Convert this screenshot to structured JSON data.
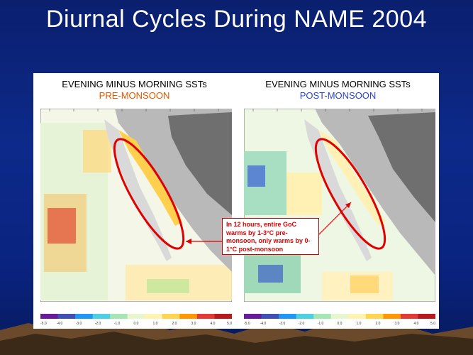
{
  "slide": {
    "title": "Diurnal Cycles During NAME 2004"
  },
  "panels": [
    {
      "title": "EVENING MINUS MORNING SSTs",
      "subtitle": "PRE-MONSOON",
      "subtitle_color": "#e05a00"
    },
    {
      "title": "EVENING MINUS MORNING SSTs",
      "subtitle": "POST-MONSOON",
      "subtitle_color": "#2a46c8"
    }
  ],
  "callout": {
    "text": "In 12 hours, entire GoC warms by 1-3°C pre-monsoon, only warms by 0-1°C post-monsoon",
    "color": "#dd0000"
  },
  "map_ticks": {
    "lon": [
      "-120",
      "-118",
      "-116",
      "-114",
      "-112",
      "-110",
      "-108",
      "-106"
    ],
    "lat": [
      "32",
      "30",
      "28",
      "26",
      "24",
      "22",
      "20"
    ]
  },
  "colorbar": {
    "unit": "(°C)",
    "ticks": [
      "-5.0",
      "-4.0",
      "-3.0",
      "-2.0",
      "-1.0",
      "0.0",
      "1.0",
      "2.0",
      "3.0",
      "4.0",
      "5.0"
    ],
    "colors": [
      "#6a1b9a",
      "#3f51b5",
      "#2196f3",
      "#4dd0e1",
      "#a5e6b4",
      "#e8f6d0",
      "#fff3b0",
      "#ffd54f",
      "#ff9800",
      "#e53935",
      "#b71c1c"
    ]
  }
}
